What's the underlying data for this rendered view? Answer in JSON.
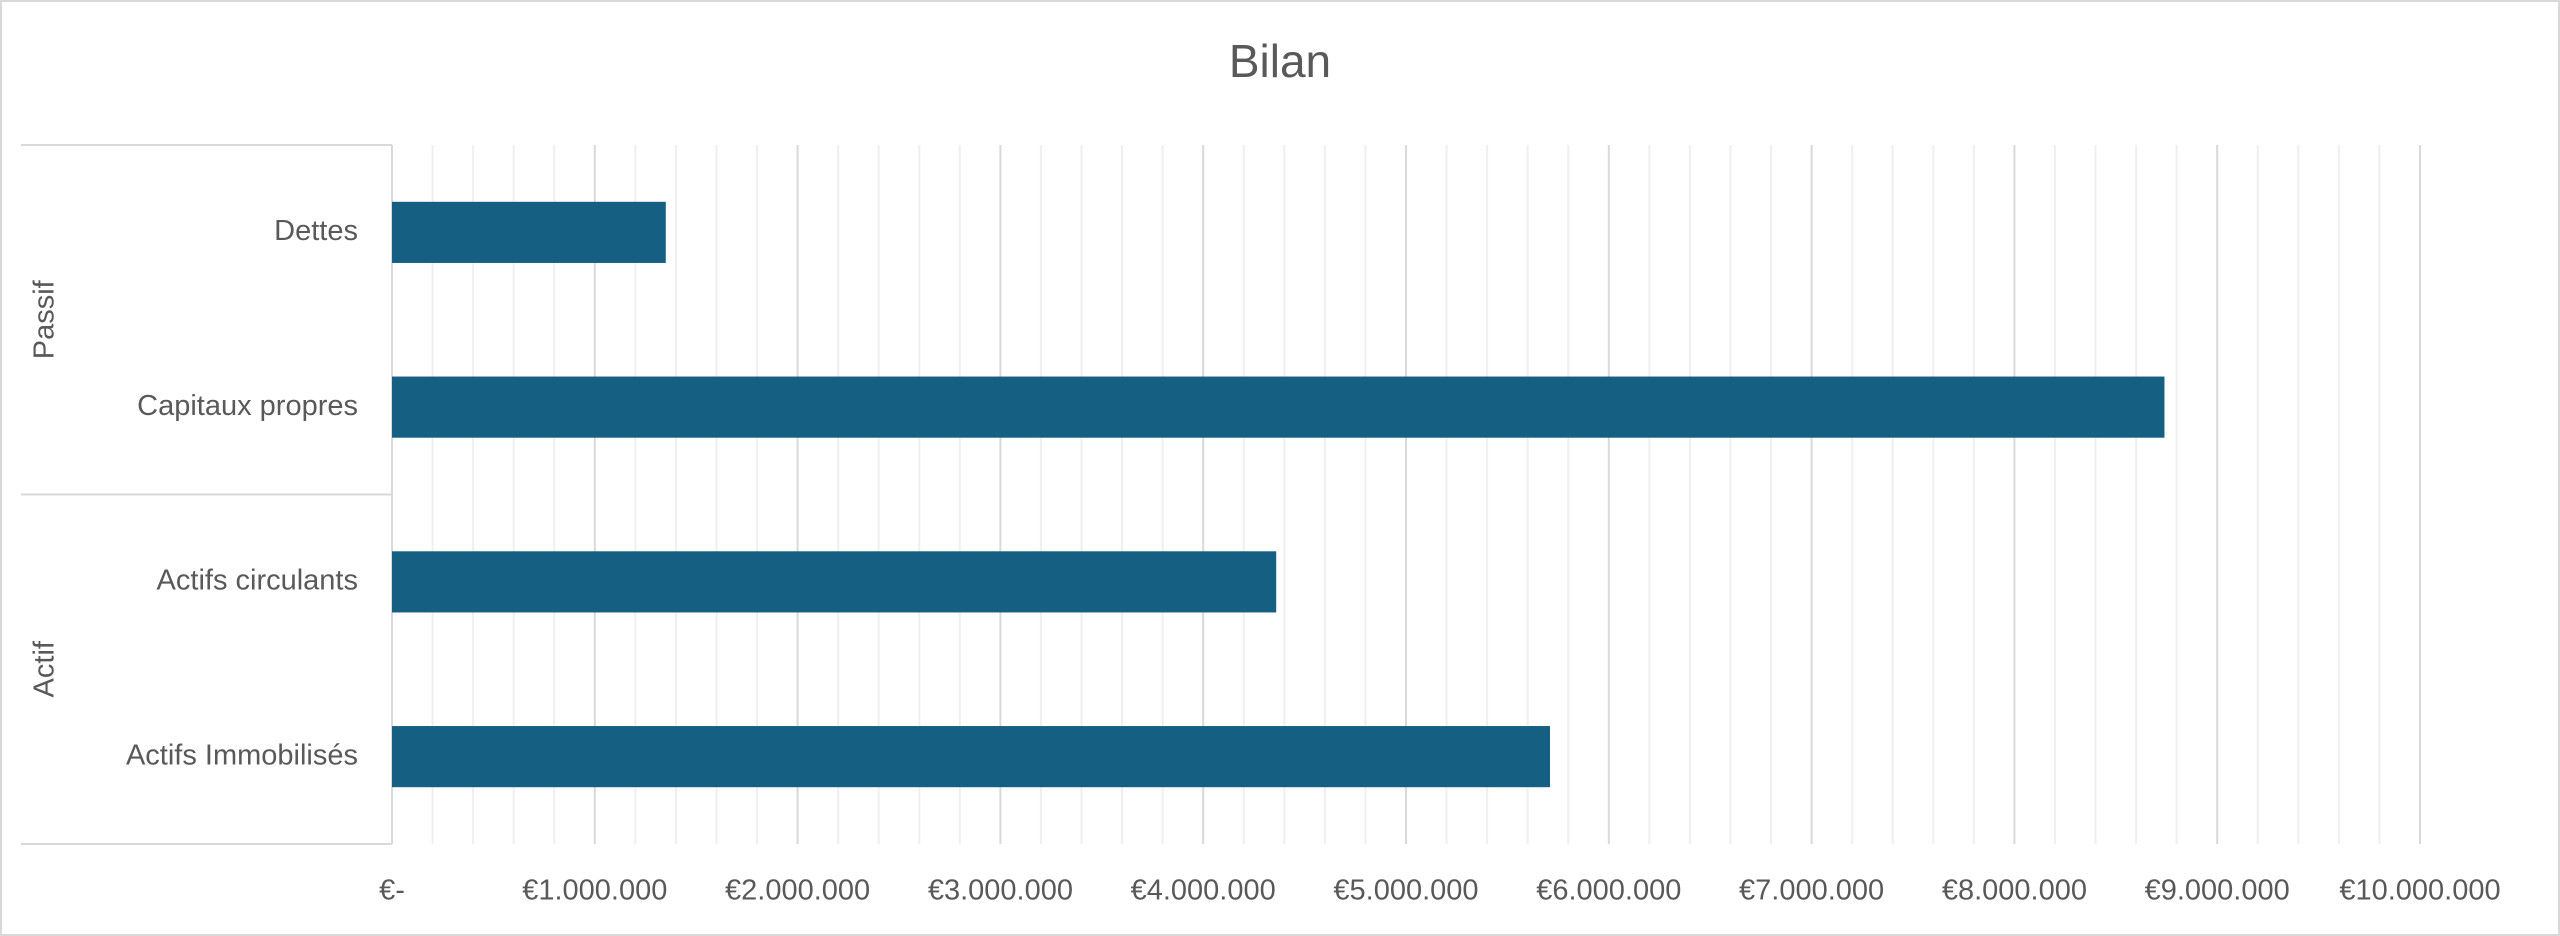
{
  "chart_data": {
    "type": "bar",
    "orientation": "horizontal",
    "title": "Bilan",
    "color": "#156082",
    "groups": [
      {
        "name": "Passif",
        "categories": [
          "Dettes",
          "Capitaux propres"
        ],
        "values": [
          1350000,
          8740000
        ]
      },
      {
        "name": "Actif",
        "categories": [
          "Actifs circulants",
          "Actifs Immobilisés"
        ],
        "values": [
          4360000,
          5710000
        ]
      }
    ],
    "xlim": [
      0,
      10000000
    ],
    "xticks": [
      {
        "value": 0,
        "label": "€-"
      },
      {
        "value": 1000000,
        "label": "€1.000.000"
      },
      {
        "value": 2000000,
        "label": "€2.000.000"
      },
      {
        "value": 3000000,
        "label": "€3.000.000"
      },
      {
        "value": 4000000,
        "label": "€4.000.000"
      },
      {
        "value": 5000000,
        "label": "€5.000.000"
      },
      {
        "value": 6000000,
        "label": "€6.000.000"
      },
      {
        "value": 7000000,
        "label": "€7.000.000"
      },
      {
        "value": 8000000,
        "label": "€8.000.000"
      },
      {
        "value": 9000000,
        "label": "€9.000.000"
      },
      {
        "value": 10000000,
        "label": "€10.000.000"
      }
    ],
    "x_minor_ticks": [
      200000,
      400000,
      600000,
      800000,
      1200000,
      1400000,
      1600000,
      1800000,
      2200000,
      2400000,
      2600000,
      2800000,
      3200000,
      3400000,
      3600000,
      3800000,
      4200000,
      4400000,
      4600000,
      4800000,
      5200000,
      5400000,
      5600000,
      5800000,
      6200000,
      6400000,
      6600000,
      6800000,
      7200000,
      7400000,
      7600000,
      7800000,
      8200000,
      8400000,
      8600000,
      8800000,
      9200000,
      9400000,
      9600000,
      9800000
    ],
    "grid": true
  }
}
